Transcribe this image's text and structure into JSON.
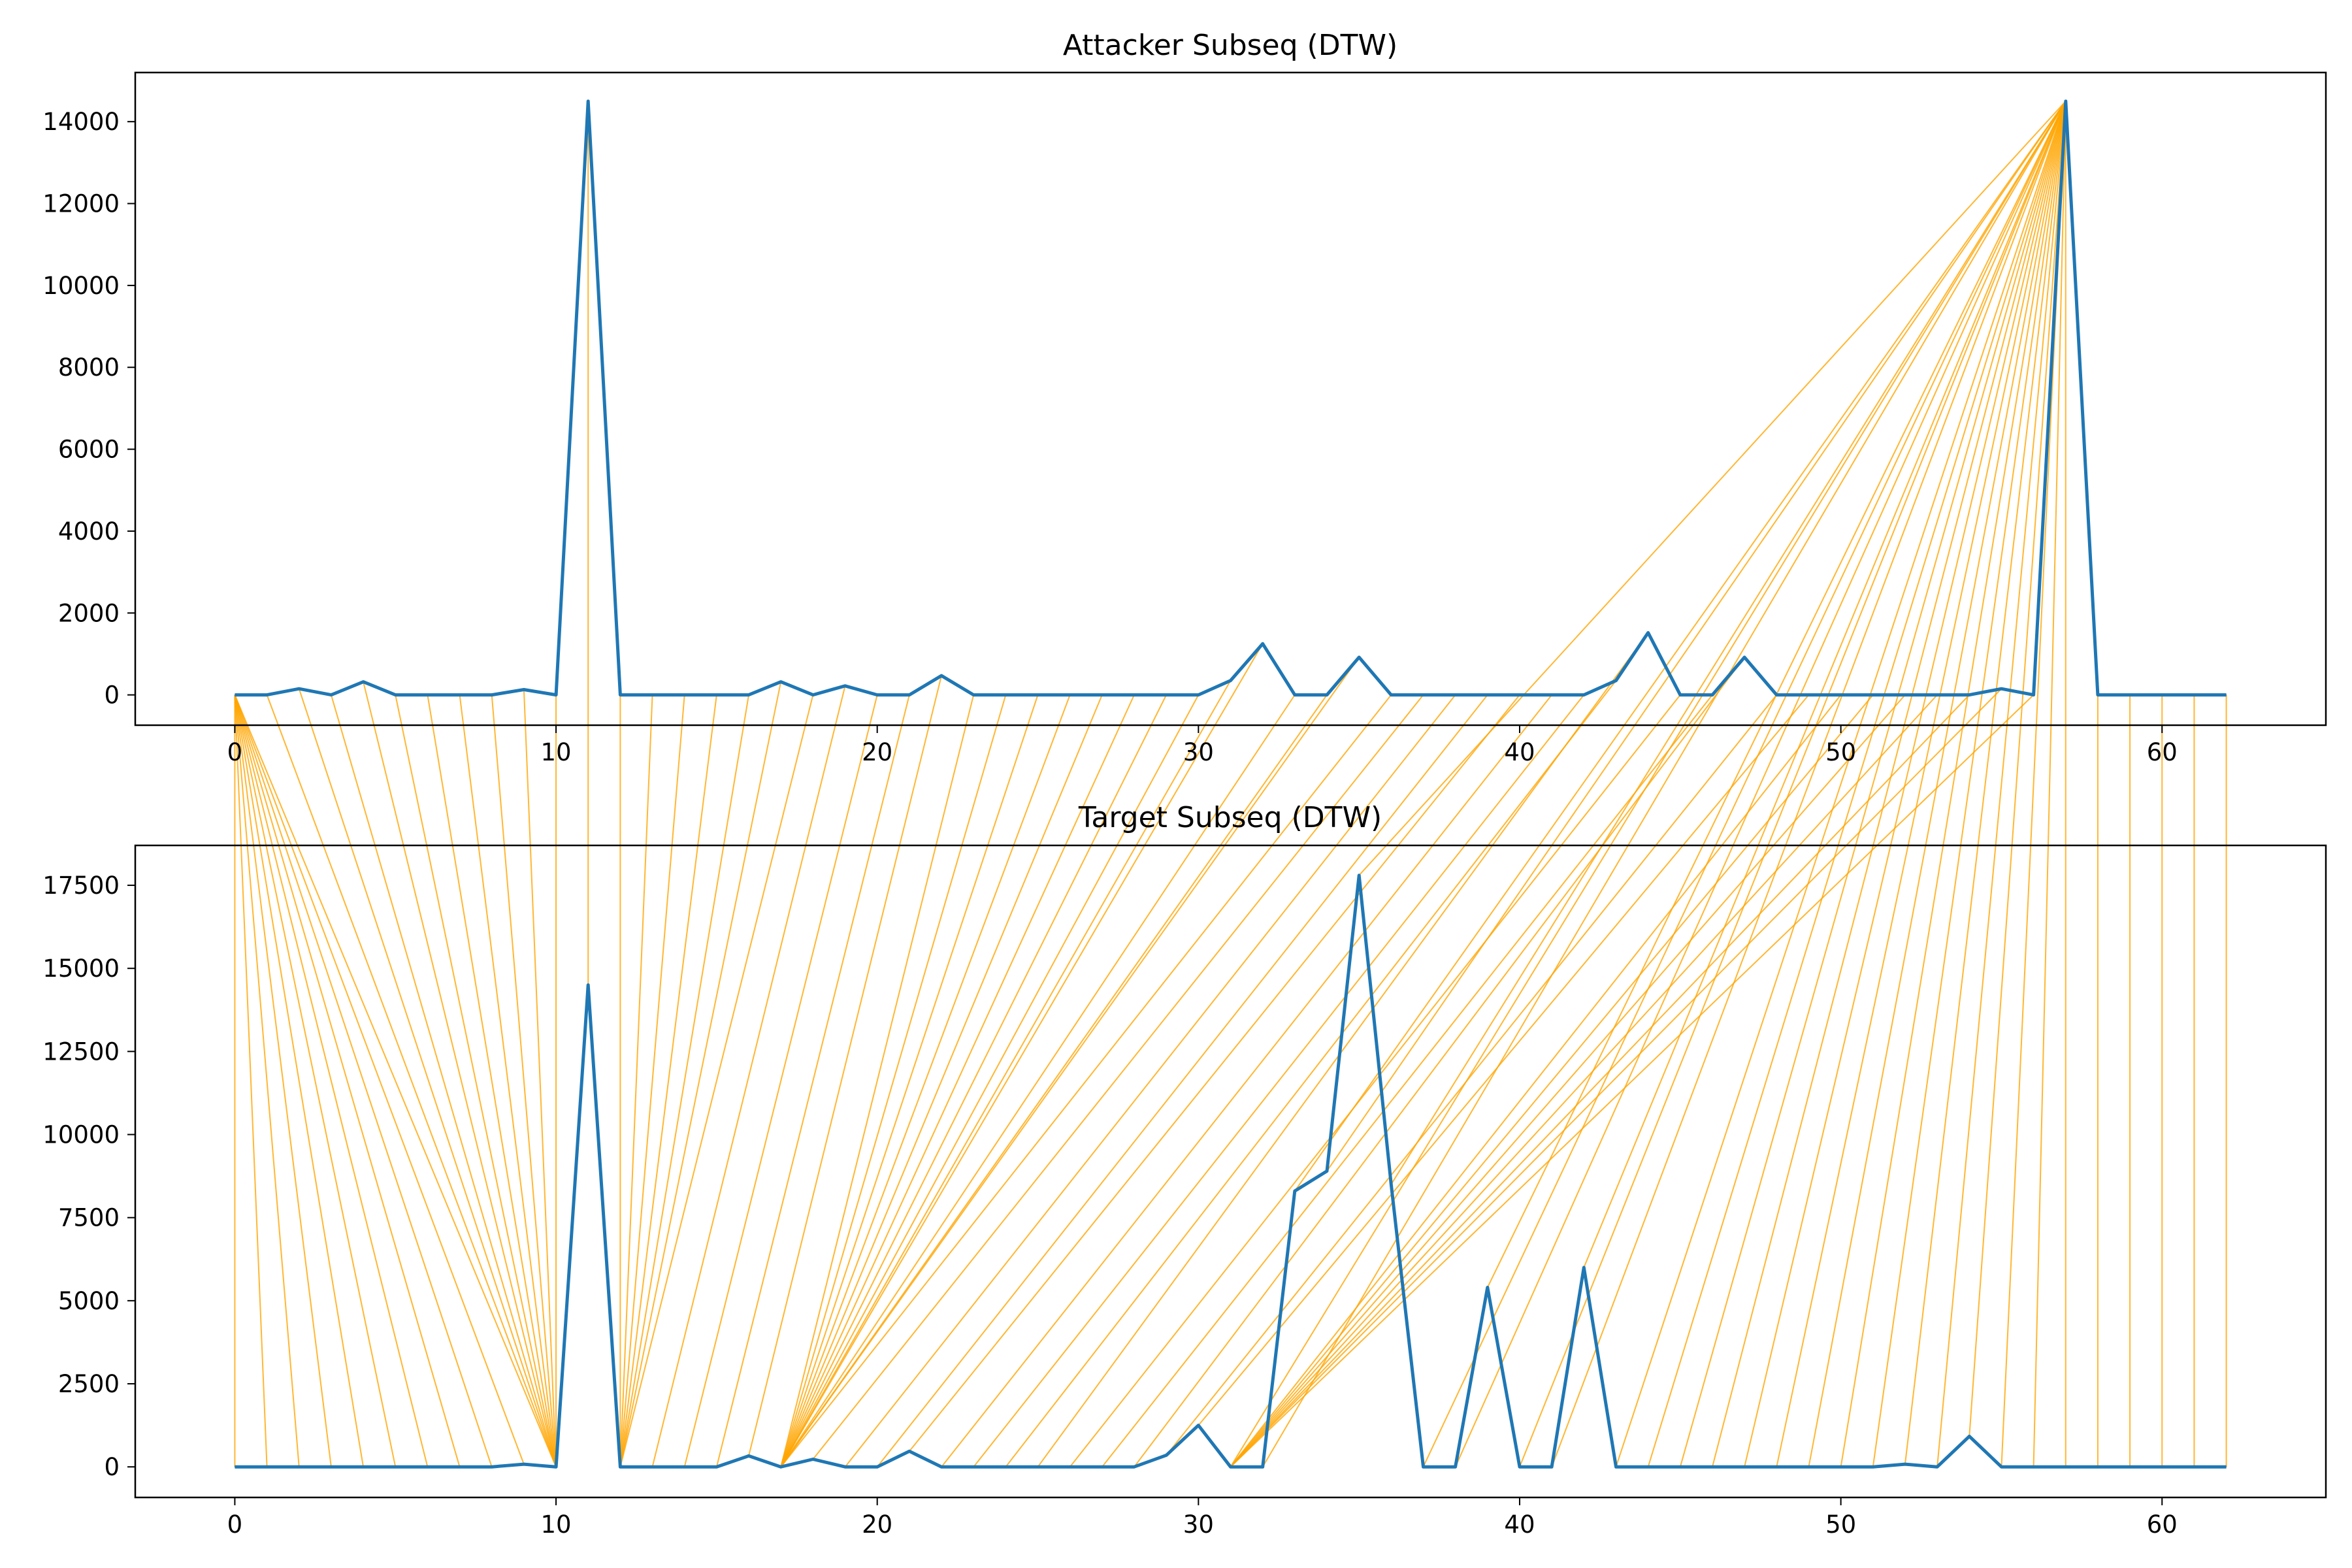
{
  "chart_data": [
    {
      "type": "line",
      "title": "Attacker Subseq (DTW)",
      "xlabel": "",
      "ylabel": "",
      "xlim": [
        -3.1,
        65.1
      ],
      "ylim": [
        -740,
        15200
      ],
      "xticks": [
        0,
        10,
        20,
        30,
        40,
        50,
        60
      ],
      "yticks": [
        0,
        2000,
        4000,
        6000,
        8000,
        10000,
        12000,
        14000
      ],
      "line_color": "#1f77b4",
      "values": [
        0,
        0,
        150,
        0,
        320,
        0,
        0,
        0,
        0,
        130,
        0,
        14500,
        0,
        0,
        0,
        0,
        0,
        320,
        0,
        220,
        0,
        0,
        470,
        0,
        0,
        0,
        0,
        0,
        0,
        0,
        0,
        350,
        1250,
        0,
        0,
        920,
        0,
        0,
        0,
        0,
        0,
        0,
        0,
        350,
        1520,
        0,
        0,
        920,
        0,
        0,
        0,
        0,
        0,
        0,
        0,
        150,
        0,
        14500,
        0,
        0,
        0,
        0,
        0
      ]
    },
    {
      "type": "line",
      "title": "Target Subseq (DTW)",
      "xlabel": "",
      "ylabel": "",
      "xlim": [
        -3.1,
        65.1
      ],
      "ylim": [
        -920,
        18700
      ],
      "xticks": [
        0,
        10,
        20,
        30,
        40,
        50,
        60
      ],
      "yticks": [
        0,
        2500,
        5000,
        7500,
        10000,
        12500,
        15000,
        17500
      ],
      "line_color": "#1f77b4",
      "values": [
        0,
        0,
        0,
        0,
        0,
        0,
        0,
        0,
        0,
        80,
        0,
        14500,
        0,
        0,
        0,
        0,
        330,
        0,
        230,
        0,
        0,
        470,
        0,
        0,
        0,
        0,
        0,
        0,
        0,
        350,
        1250,
        0,
        0,
        8300,
        8900,
        17800,
        8500,
        0,
        0,
        5400,
        0,
        0,
        6000,
        0,
        0,
        0,
        0,
        0,
        0,
        0,
        0,
        0,
        80,
        0,
        920,
        0,
        0,
        0,
        0,
        0,
        0,
        0,
        0
      ]
    }
  ],
  "dtw_path": {
    "color": "#ffa500",
    "pairs": [
      [
        0,
        0
      ],
      [
        0,
        1
      ],
      [
        0,
        2
      ],
      [
        0,
        3
      ],
      [
        0,
        4
      ],
      [
        0,
        5
      ],
      [
        0,
        6
      ],
      [
        0,
        7
      ],
      [
        0,
        8
      ],
      [
        0,
        9
      ],
      [
        0,
        10
      ],
      [
        1,
        10
      ],
      [
        2,
        10
      ],
      [
        3,
        10
      ],
      [
        4,
        10
      ],
      [
        5,
        10
      ],
      [
        6,
        10
      ],
      [
        7,
        10
      ],
      [
        8,
        10
      ],
      [
        9,
        10
      ],
      [
        10,
        10
      ],
      [
        11,
        11
      ],
      [
        12,
        12
      ],
      [
        13,
        12
      ],
      [
        14,
        12
      ],
      [
        15,
        12
      ],
      [
        16,
        12
      ],
      [
        17,
        12
      ],
      [
        18,
        12
      ],
      [
        19,
        13
      ],
      [
        20,
        14
      ],
      [
        21,
        15
      ],
      [
        22,
        16
      ],
      [
        23,
        17
      ],
      [
        24,
        17
      ],
      [
        25,
        17
      ],
      [
        26,
        17
      ],
      [
        27,
        17
      ],
      [
        28,
        17
      ],
      [
        29,
        17
      ],
      [
        30,
        17
      ],
      [
        31,
        17
      ],
      [
        32,
        17
      ],
      [
        33,
        17
      ],
      [
        34,
        17
      ],
      [
        35,
        17
      ],
      [
        36,
        17
      ],
      [
        37,
        18
      ],
      [
        38,
        19
      ],
      [
        39,
        20
      ],
      [
        40,
        21
      ],
      [
        41,
        22
      ],
      [
        42,
        23
      ],
      [
        43,
        24
      ],
      [
        44,
        25
      ],
      [
        45,
        26
      ],
      [
        46,
        27
      ],
      [
        47,
        28
      ],
      [
        48,
        29
      ],
      [
        49,
        30
      ],
      [
        50,
        31
      ],
      [
        51,
        31
      ],
      [
        52,
        31
      ],
      [
        53,
        31
      ],
      [
        54,
        31
      ],
      [
        55,
        31
      ],
      [
        56,
        31
      ],
      [
        57,
        31
      ],
      [
        57,
        32
      ],
      [
        57,
        33
      ],
      [
        57,
        34
      ],
      [
        57,
        35
      ],
      [
        57,
        36
      ],
      [
        57,
        37
      ],
      [
        57,
        38
      ],
      [
        57,
        39
      ],
      [
        57,
        40
      ],
      [
        57,
        41
      ],
      [
        57,
        42
      ],
      [
        57,
        43
      ],
      [
        57,
        44
      ],
      [
        57,
        45
      ],
      [
        57,
        46
      ],
      [
        57,
        47
      ],
      [
        57,
        48
      ],
      [
        57,
        49
      ],
      [
        57,
        50
      ],
      [
        57,
        51
      ],
      [
        57,
        52
      ],
      [
        57,
        53
      ],
      [
        57,
        54
      ],
      [
        57,
        55
      ],
      [
        57,
        56
      ],
      [
        57,
        57
      ],
      [
        58,
        58
      ],
      [
        59,
        59
      ],
      [
        60,
        60
      ],
      [
        61,
        61
      ],
      [
        62,
        62
      ]
    ]
  }
}
